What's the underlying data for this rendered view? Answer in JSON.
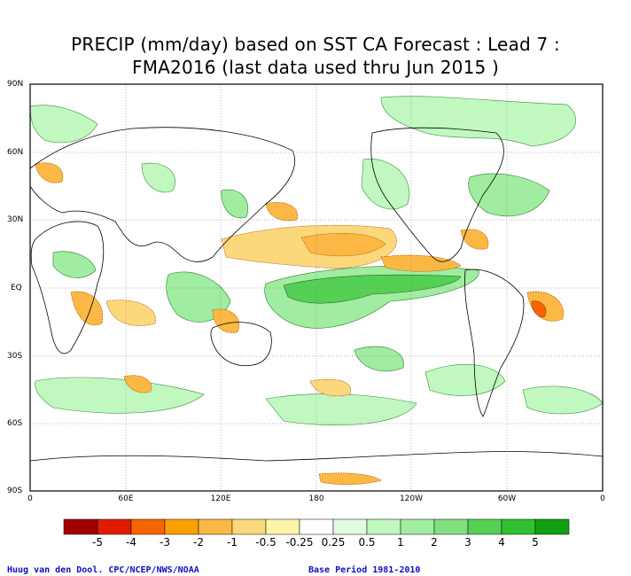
{
  "title": {
    "line1": "PRECIP (mm/day) based on SST CA Forecast : Lead 7 :",
    "line2": "FMA2016 (last data used thru Jun 2015 )"
  },
  "axes": {
    "y_ticks": [
      "90N",
      "60N",
      "30N",
      "EQ",
      "30S",
      "60S",
      "90S"
    ],
    "x_ticks": [
      "0",
      "60E",
      "120E",
      "180",
      "120W",
      "60W",
      "0"
    ]
  },
  "colorbar": {
    "labels": [
      "-5",
      "-4",
      "-3",
      "-2",
      "-1",
      "-0.5",
      "-0.25",
      "0.25",
      "0.5",
      "1",
      "2",
      "3",
      "4",
      "5"
    ],
    "colors": [
      "#a00000",
      "#e01c00",
      "#f86400",
      "#fca000",
      "#fcb844",
      "#fcd87c",
      "#fcf4a8",
      "#ffffff",
      "#e0fce0",
      "#c0f8c0",
      "#a0eca0",
      "#80e080",
      "#54d054",
      "#30c030",
      "#10a010"
    ]
  },
  "credits": {
    "left": "Huug van den Dool. CPC/NCEP/NWS/NOAA",
    "right": "Base Period 1981-2010"
  },
  "anomaly_colors": {
    "dry": "#fcb844",
    "dry_strong": "#f86400",
    "wet": "#a0eca0",
    "wet_strong": "#54d054"
  }
}
